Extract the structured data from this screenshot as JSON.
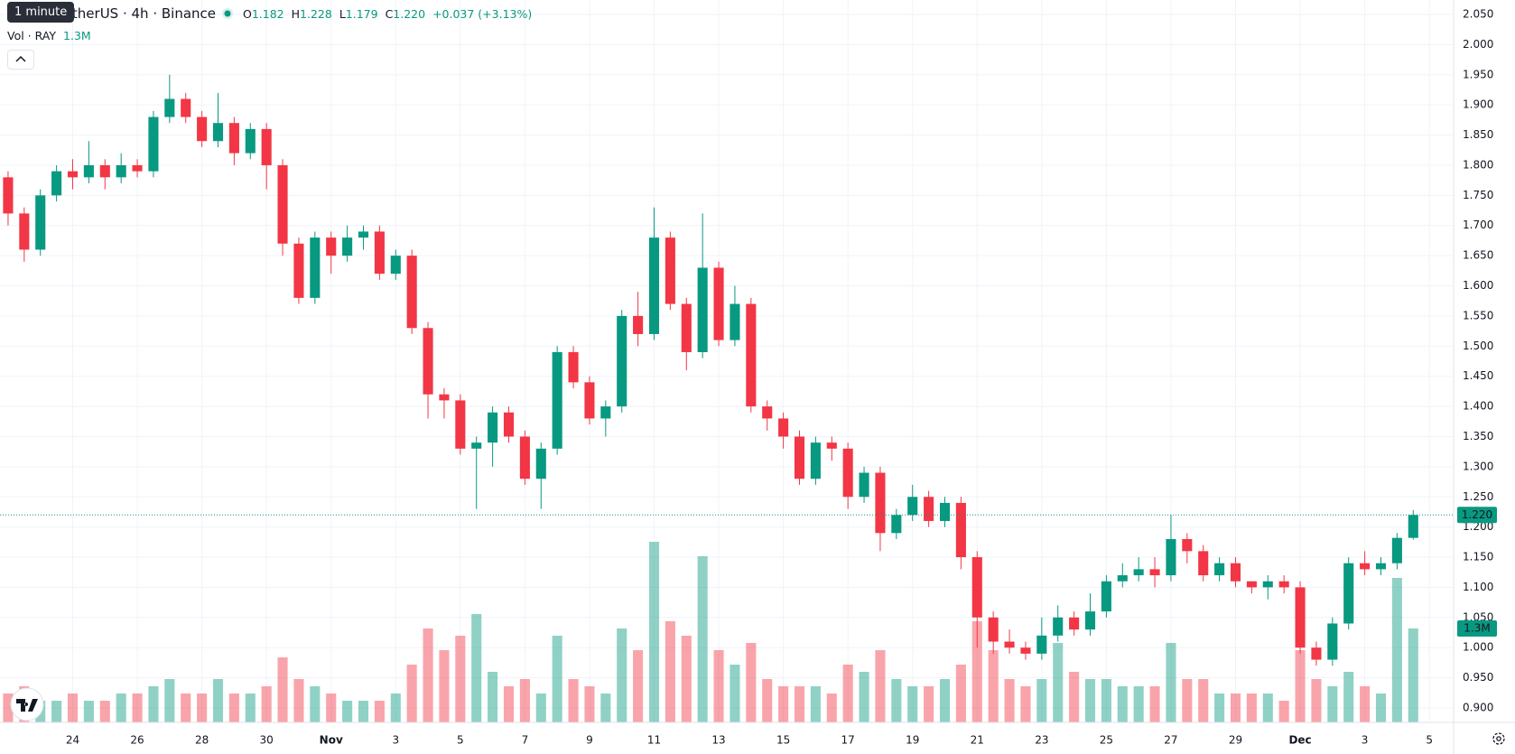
{
  "chart_data": {
    "type": "candlestick",
    "tooltip": "1 minute",
    "legend": {
      "o_label": "O",
      "open": "1.182",
      "h_label": "H",
      "high": "1.228",
      "l_label": "L",
      "low": "1.179",
      "c_label": "C",
      "close": "1.220",
      "change": "+0.037 (+3.13%)"
    },
    "series": [
      {
        "name": "RAYTetherUS · 4h · Binance",
        "up_color": "#089981",
        "down_color": "#f23645",
        "open": [
          1.78,
          1.72,
          1.66,
          1.75,
          1.79,
          1.78,
          1.8,
          1.78,
          1.8,
          1.79,
          1.88,
          1.91,
          1.88,
          1.84,
          1.87,
          1.82,
          1.86,
          1.8,
          1.67,
          1.58,
          1.68,
          1.65,
          1.68,
          1.69,
          1.62,
          1.65,
          1.53,
          1.42,
          1.41,
          1.33,
          1.34,
          1.39,
          1.35,
          1.28,
          1.33,
          1.49,
          1.44,
          1.38,
          1.4,
          1.55,
          1.52,
          1.68,
          1.57,
          1.49,
          1.63,
          1.51,
          1.57,
          1.4,
          1.38,
          1.35,
          1.28,
          1.34,
          1.33,
          1.25,
          1.29,
          1.19,
          1.22,
          1.25,
          1.21,
          1.24,
          1.15,
          1.05,
          1.01,
          1.0,
          0.99,
          1.02,
          1.05,
          1.03,
          1.06,
          1.11,
          1.12,
          1.13,
          1.12,
          1.18,
          1.16,
          1.12,
          1.14,
          1.11,
          1.1,
          1.11,
          1.1,
          1.0,
          0.98,
          1.04,
          1.14,
          1.13,
          1.14,
          1.182
        ],
        "high": [
          1.79,
          1.73,
          1.76,
          1.8,
          1.81,
          1.84,
          1.81,
          1.82,
          1.81,
          1.89,
          1.95,
          1.92,
          1.89,
          1.92,
          1.88,
          1.87,
          1.87,
          1.81,
          1.68,
          1.69,
          1.69,
          1.7,
          1.7,
          1.7,
          1.66,
          1.66,
          1.54,
          1.43,
          1.42,
          1.35,
          1.4,
          1.4,
          1.36,
          1.34,
          1.5,
          1.5,
          1.45,
          1.41,
          1.56,
          1.59,
          1.73,
          1.69,
          1.58,
          1.72,
          1.64,
          1.6,
          1.58,
          1.41,
          1.39,
          1.36,
          1.35,
          1.35,
          1.34,
          1.3,
          1.3,
          1.23,
          1.27,
          1.26,
          1.25,
          1.25,
          1.16,
          1.06,
          1.03,
          1.01,
          1.05,
          1.07,
          1.06,
          1.09,
          1.12,
          1.14,
          1.15,
          1.15,
          1.22,
          1.19,
          1.17,
          1.15,
          1.15,
          1.11,
          1.12,
          1.12,
          1.11,
          1.01,
          1.05,
          1.15,
          1.16,
          1.15,
          1.19,
          1.228
        ],
        "low": [
          1.7,
          1.64,
          1.65,
          1.74,
          1.76,
          1.77,
          1.76,
          1.77,
          1.78,
          1.78,
          1.87,
          1.87,
          1.83,
          1.83,
          1.8,
          1.81,
          1.76,
          1.65,
          1.57,
          1.57,
          1.62,
          1.64,
          1.66,
          1.61,
          1.61,
          1.52,
          1.38,
          1.38,
          1.32,
          1.23,
          1.3,
          1.34,
          1.27,
          1.23,
          1.32,
          1.43,
          1.37,
          1.35,
          1.39,
          1.5,
          1.51,
          1.56,
          1.46,
          1.48,
          1.5,
          1.5,
          1.39,
          1.36,
          1.33,
          1.27,
          1.27,
          1.31,
          1.23,
          1.24,
          1.16,
          1.18,
          1.21,
          1.2,
          1.2,
          1.13,
          1.0,
          0.99,
          0.99,
          0.98,
          0.98,
          1.01,
          1.02,
          1.02,
          1.05,
          1.1,
          1.11,
          1.1,
          1.11,
          1.14,
          1.11,
          1.11,
          1.1,
          1.09,
          1.08,
          1.09,
          0.99,
          0.97,
          0.97,
          1.03,
          1.12,
          1.12,
          1.13,
          1.179
        ],
        "close": [
          1.72,
          1.66,
          1.75,
          1.79,
          1.78,
          1.8,
          1.78,
          1.8,
          1.79,
          1.88,
          1.91,
          1.88,
          1.84,
          1.87,
          1.82,
          1.86,
          1.8,
          1.67,
          1.58,
          1.68,
          1.65,
          1.68,
          1.69,
          1.62,
          1.65,
          1.53,
          1.42,
          1.41,
          1.33,
          1.34,
          1.39,
          1.35,
          1.28,
          1.33,
          1.49,
          1.44,
          1.38,
          1.4,
          1.55,
          1.52,
          1.68,
          1.57,
          1.49,
          1.63,
          1.51,
          1.57,
          1.4,
          1.38,
          1.35,
          1.28,
          1.34,
          1.33,
          1.25,
          1.29,
          1.19,
          1.22,
          1.25,
          1.21,
          1.24,
          1.15,
          1.05,
          1.01,
          1.0,
          0.99,
          1.02,
          1.05,
          1.03,
          1.06,
          1.11,
          1.12,
          1.13,
          1.12,
          1.18,
          1.16,
          1.12,
          1.14,
          1.11,
          1.1,
          1.11,
          1.1,
          1.0,
          0.98,
          1.04,
          1.14,
          1.13,
          1.14,
          1.182,
          1.22
        ]
      }
    ],
    "volume": {
      "name": "Vol · RAY",
      "axis": "y2",
      "values": [
        0.4,
        0.5,
        0.3,
        0.3,
        0.4,
        0.3,
        0.3,
        0.4,
        0.4,
        0.5,
        0.6,
        0.4,
        0.4,
        0.6,
        0.4,
        0.4,
        0.5,
        0.9,
        0.6,
        0.5,
        0.4,
        0.3,
        0.3,
        0.3,
        0.4,
        0.8,
        1.3,
        1.0,
        1.2,
        1.5,
        0.7,
        0.5,
        0.6,
        0.4,
        1.2,
        0.6,
        0.5,
        0.4,
        1.3,
        1.0,
        2.5,
        1.4,
        1.2,
        2.3,
        1.0,
        0.8,
        1.1,
        0.6,
        0.5,
        0.5,
        0.5,
        0.4,
        0.8,
        0.7,
        1.0,
        0.6,
        0.5,
        0.5,
        0.6,
        0.8,
        1.4,
        1.0,
        0.6,
        0.5,
        0.6,
        1.1,
        0.7,
        0.6,
        0.6,
        0.5,
        0.5,
        0.5,
        1.1,
        0.6,
        0.6,
        0.4,
        0.4,
        0.4,
        0.4,
        0.3,
        1.0,
        0.6,
        0.5,
        0.7,
        0.5,
        0.4,
        2.0,
        1.3
      ]
    },
    "last_price": {
      "value": 1.22,
      "label": "1.220"
    },
    "last_volume": {
      "value": 1.3,
      "label": "1.3M"
    },
    "xlim": [
      -0.5,
      89.5
    ],
    "xticks": [
      {
        "value": 4,
        "label": "24"
      },
      {
        "value": 8,
        "label": "26"
      },
      {
        "value": 12,
        "label": "28"
      },
      {
        "value": 16,
        "label": "30"
      },
      {
        "value": 20,
        "label": "Nov"
      },
      {
        "value": 24,
        "label": "3"
      },
      {
        "value": 28,
        "label": "5"
      },
      {
        "value": 32,
        "label": "7"
      },
      {
        "value": 36,
        "label": "9"
      },
      {
        "value": 40,
        "label": "11"
      },
      {
        "value": 44,
        "label": "13"
      },
      {
        "value": 48,
        "label": "15"
      },
      {
        "value": 52,
        "label": "17"
      },
      {
        "value": 56,
        "label": "19"
      },
      {
        "value": 60,
        "label": "21"
      },
      {
        "value": 64,
        "label": "23"
      },
      {
        "value": 68,
        "label": "25"
      },
      {
        "value": 72,
        "label": "27"
      },
      {
        "value": 76,
        "label": "29"
      },
      {
        "value": 80,
        "label": "Dec"
      },
      {
        "value": 84,
        "label": "3"
      },
      {
        "value": 88,
        "label": "5"
      }
    ],
    "ylim": [
      0.876,
      2.074
    ],
    "yticks": [
      {
        "value": 2.05,
        "label": "2.050"
      },
      {
        "value": 2.0,
        "label": "2.000"
      },
      {
        "value": 1.95,
        "label": "1.950"
      },
      {
        "value": 1.9,
        "label": "1.900"
      },
      {
        "value": 1.85,
        "label": "1.850"
      },
      {
        "value": 1.8,
        "label": "1.800"
      },
      {
        "value": 1.75,
        "label": "1.750"
      },
      {
        "value": 1.7,
        "label": "1.700"
      },
      {
        "value": 1.65,
        "label": "1.650"
      },
      {
        "value": 1.6,
        "label": "1.600"
      },
      {
        "value": 1.55,
        "label": "1.550"
      },
      {
        "value": 1.5,
        "label": "1.500"
      },
      {
        "value": 1.45,
        "label": "1.450"
      },
      {
        "value": 1.4,
        "label": "1.400"
      },
      {
        "value": 1.35,
        "label": "1.350"
      },
      {
        "value": 1.3,
        "label": "1.300"
      },
      {
        "value": 1.25,
        "label": "1.250"
      },
      {
        "value": 1.2,
        "label": "1.200"
      },
      {
        "value": 1.15,
        "label": "1.150"
      },
      {
        "value": 1.1,
        "label": "1.100"
      },
      {
        "value": 1.05,
        "label": "1.050"
      },
      {
        "value": 1.0,
        "label": "1.000"
      },
      {
        "value": 0.95,
        "label": "0.950"
      },
      {
        "value": 0.9,
        "label": "0.900"
      }
    ],
    "y2lim": [
      0,
      10
    ],
    "grid": true
  }
}
